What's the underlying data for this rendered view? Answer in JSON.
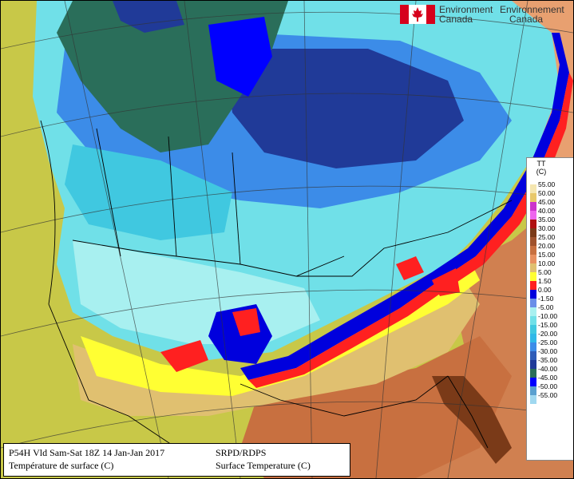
{
  "logo": {
    "line1_en": "Environment",
    "line2_en": "Canada",
    "line1_fr": "Environnement",
    "line2_fr": "Canada",
    "flag_color": "#d6001c"
  },
  "legend": {
    "var_code": "TT",
    "unit": "(C)",
    "entries": [
      {
        "label": "55.00",
        "color": "#f5e6b0"
      },
      {
        "label": "50.00",
        "color": "#e8c86a"
      },
      {
        "label": "45.00",
        "color": "#cc33cc"
      },
      {
        "label": "40.00",
        "color": "#ee66ee"
      },
      {
        "label": "35.00",
        "color": "#b01010"
      },
      {
        "label": "30.00",
        "color": "#7a3a18"
      },
      {
        "label": "25.00",
        "color": "#a0522d"
      },
      {
        "label": "20.00",
        "color": "#c87040"
      },
      {
        "label": "15.00",
        "color": "#e89060"
      },
      {
        "label": "10.00",
        "color": "#e0c070"
      },
      {
        "label": "5.00",
        "color": "#ffff33"
      },
      {
        "label": "1.50",
        "color": "#ff2020"
      },
      {
        "label": "0.00",
        "color": "#0000dd"
      },
      {
        "label": "-1.50",
        "color": "#6a8ee8"
      },
      {
        "label": "-5.00",
        "color": "#a8f0f0"
      },
      {
        "label": "-10.00",
        "color": "#70e0e8"
      },
      {
        "label": "-15.00",
        "color": "#40c8e0"
      },
      {
        "label": "-20.00",
        "color": "#30b8e8"
      },
      {
        "label": "-25.00",
        "color": "#3c8ce8"
      },
      {
        "label": "-30.00",
        "color": "#2e5cb8"
      },
      {
        "label": "-35.00",
        "color": "#203a98"
      },
      {
        "label": "-40.00",
        "color": "#2a6e5a"
      },
      {
        "label": "-45.00",
        "color": "#0000ff"
      },
      {
        "label": "-50.00",
        "color": "#5aa0d0"
      },
      {
        "label": "-55.00",
        "color": "#a0d8f0"
      }
    ]
  },
  "caption": {
    "left_line1": "P54H Vld Sam-Sat 18Z 14 Jan-Jan 2017",
    "left_line2": "Température de surface (C)",
    "right_line1": "SRPD/RDPS",
    "right_line2": "Surface Temperature (C)"
  },
  "map_colors": {
    "ocean_east": "#d08050",
    "ocean_east_far": "#e8a070",
    "pacific": "#c8c848",
    "arctic_green": "#2a6e5a",
    "deep_blue": "#203a98",
    "mid_blue": "#3c8ce8",
    "light_blue": "#40c8e0",
    "cyan": "#70e0e8",
    "pale_cyan": "#a8f0f0",
    "freeze_blue": "#0000dd",
    "red": "#ff2020",
    "yellow": "#ffff33",
    "tan": "#e0c070",
    "brown": "#a0522d",
    "dark_brown": "#7a3a18",
    "tan_far": "#e8c86a"
  }
}
